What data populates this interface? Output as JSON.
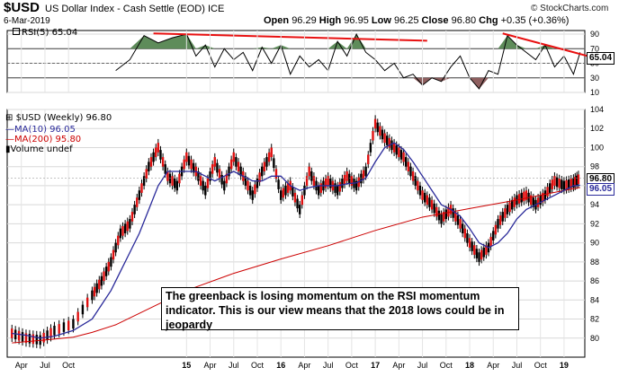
{
  "header": {
    "symbol": "$USD",
    "name": "US Dollar Index - Cash Settle (EOD)",
    "exchange": "ICE",
    "date": "6-Mar-2019",
    "open_label": "Open",
    "open": "96.29",
    "high_label": "High",
    "high": "96.95",
    "low_label": "Low",
    "low": "96.25",
    "close_label": "Close",
    "close": "96.80",
    "chg_label": "Chg",
    "chg": "+0.35 (+0.36%)",
    "credit": "© StockCharts.com"
  },
  "annotation": "The greenback is losing momentum on the RSI momentum indicator. This is our view means that the 2018 lows could be in jeopardy",
  "chart_data": [
    {
      "type": "line",
      "legend": "RSI(5) 65.04",
      "last_value_label": "65.04",
      "ylim": [
        10,
        95
      ],
      "y_ticks": [
        10,
        30,
        50,
        70,
        90
      ],
      "overbought": 70,
      "oversold": 30,
      "grid": true,
      "x": [
        2014.25,
        2014.4,
        2014.55,
        2014.7,
        2014.85,
        2015.0,
        2015.1,
        2015.2,
        2015.3,
        2015.4,
        2015.5,
        2015.6,
        2015.7,
        2015.8,
        2015.9,
        2016.0,
        2016.1,
        2016.2,
        2016.3,
        2016.4,
        2016.5,
        2016.6,
        2016.7,
        2016.8,
        2016.9,
        2017.0,
        2017.1,
        2017.2,
        2017.3,
        2017.4,
        2017.5,
        2017.6,
        2017.7,
        2017.8,
        2017.9,
        2018.0,
        2018.1,
        2018.2,
        2018.3,
        2018.4,
        2018.5,
        2018.6,
        2018.7,
        2018.8,
        2018.9,
        2019.0,
        2019.1,
        2019.17
      ],
      "rsi": [
        40,
        55,
        88,
        78,
        85,
        90,
        60,
        75,
        45,
        70,
        55,
        65,
        40,
        72,
        50,
        75,
        35,
        60,
        45,
        55,
        40,
        80,
        60,
        90,
        65,
        55,
        40,
        50,
        30,
        35,
        20,
        30,
        25,
        45,
        60,
        30,
        15,
        40,
        35,
        88,
        75,
        65,
        55,
        75,
        45,
        60,
        35,
        65
      ],
      "trendlines": [
        {
          "x": [
            2014.65,
            2017.55
          ],
          "y": [
            91,
            81
          ]
        },
        {
          "x": [
            2018.35,
            2019.25
          ],
          "y": [
            91,
            60
          ]
        }
      ]
    },
    {
      "type": "line",
      "legend": [
        "$USD (Weekly) 96.80",
        "MA(10) 96.05",
        "MA(200) 95.80",
        "Volume undef"
      ],
      "last_price_label": "96.80",
      "ma10_label": "96.05",
      "ma200_label": "95.80",
      "ylim": [
        78,
        104
      ],
      "y_ticks": [
        80,
        82,
        84,
        86,
        88,
        90,
        92,
        94,
        96,
        98,
        100,
        102,
        104
      ],
      "x_ticks": [
        "Apr",
        "Jul",
        "Oct",
        "15",
        "Apr",
        "Jul",
        "Oct",
        "16",
        "Apr",
        "Jul",
        "Oct",
        "17",
        "Apr",
        "Jul",
        "Oct",
        "18",
        "Apr",
        "Jul",
        "Oct",
        "19"
      ],
      "x_tick_pos": [
        2013.25,
        2013.5,
        2013.75,
        2015.0,
        2015.25,
        2015.5,
        2015.75,
        2016.0,
        2016.25,
        2016.5,
        2016.75,
        2017.0,
        2017.25,
        2017.5,
        2017.75,
        2018.0,
        2018.25,
        2018.5,
        2018.75,
        2019.0
      ],
      "xlim": [
        2013.1,
        2019.22
      ],
      "grid": true,
      "price_x": [
        2013.15,
        2013.3,
        2013.45,
        2013.6,
        2013.8,
        2014.0,
        2014.1,
        2014.2,
        2014.3,
        2014.4,
        2014.5,
        2014.6,
        2014.7,
        2014.8,
        2014.9,
        2015.0,
        2015.1,
        2015.2,
        2015.3,
        2015.4,
        2015.5,
        2015.6,
        2015.7,
        2015.8,
        2015.9,
        2016.0,
        2016.1,
        2016.2,
        2016.3,
        2016.4,
        2016.5,
        2016.6,
        2016.7,
        2016.8,
        2016.9,
        2017.0,
        2017.1,
        2017.2,
        2017.3,
        2017.4,
        2017.5,
        2017.6,
        2017.7,
        2017.8,
        2017.9,
        2018.0,
        2018.1,
        2018.2,
        2018.3,
        2018.4,
        2018.5,
        2018.6,
        2018.7,
        2018.8,
        2018.9,
        2019.0,
        2019.1,
        2019.17
      ],
      "price": [
        80.5,
        80,
        79.8,
        80.8,
        81.5,
        84.5,
        86,
        88,
        91,
        92,
        95,
        98,
        100,
        97,
        96,
        99,
        97.5,
        95.5,
        98.5,
        96,
        99,
        97,
        95,
        97.5,
        99.5,
        95,
        96,
        93.5,
        97.5,
        95.5,
        96.5,
        95.5,
        97,
        96,
        97.5,
        102.5,
        101,
        100,
        99,
        97,
        95,
        94,
        92.5,
        93.5,
        92,
        90,
        88.5,
        89.5,
        92,
        93.5,
        94.5,
        95,
        94,
        95,
        96.5,
        96,
        96.3,
        96.8
      ],
      "ma10": [
        80.5,
        80.3,
        80,
        80.2,
        80.8,
        82,
        83.5,
        85,
        87,
        89,
        91,
        93.5,
        96,
        97.5,
        97.5,
        97.5,
        97.5,
        97,
        96.5,
        97,
        97.5,
        97,
        96.5,
        96.5,
        97,
        97,
        96,
        95.5,
        95.8,
        96,
        96,
        96,
        96.2,
        96.3,
        96.8,
        98.5,
        100,
        100.5,
        99.8,
        98.5,
        97,
        95.5,
        94,
        93.5,
        92.8,
        91.5,
        90,
        89.5,
        90,
        91,
        92.5,
        93.5,
        94,
        94.5,
        95,
        95.5,
        96,
        96.05
      ],
      "ma200_x": [
        2013.15,
        2013.5,
        2013.8,
        2014.0,
        2014.25,
        2014.5,
        2014.75,
        2015.0,
        2015.5,
        2016.0,
        2016.5,
        2017.0,
        2017.5,
        2018.0,
        2018.5,
        2019.0,
        2019.17
      ],
      "ma200": [
        79.5,
        79.8,
        80.1,
        80.6,
        81.4,
        82.6,
        83.8,
        85,
        86.8,
        88.3,
        89.7,
        91.3,
        92.7,
        93.6,
        94.5,
        95.5,
        95.8
      ]
    }
  ]
}
